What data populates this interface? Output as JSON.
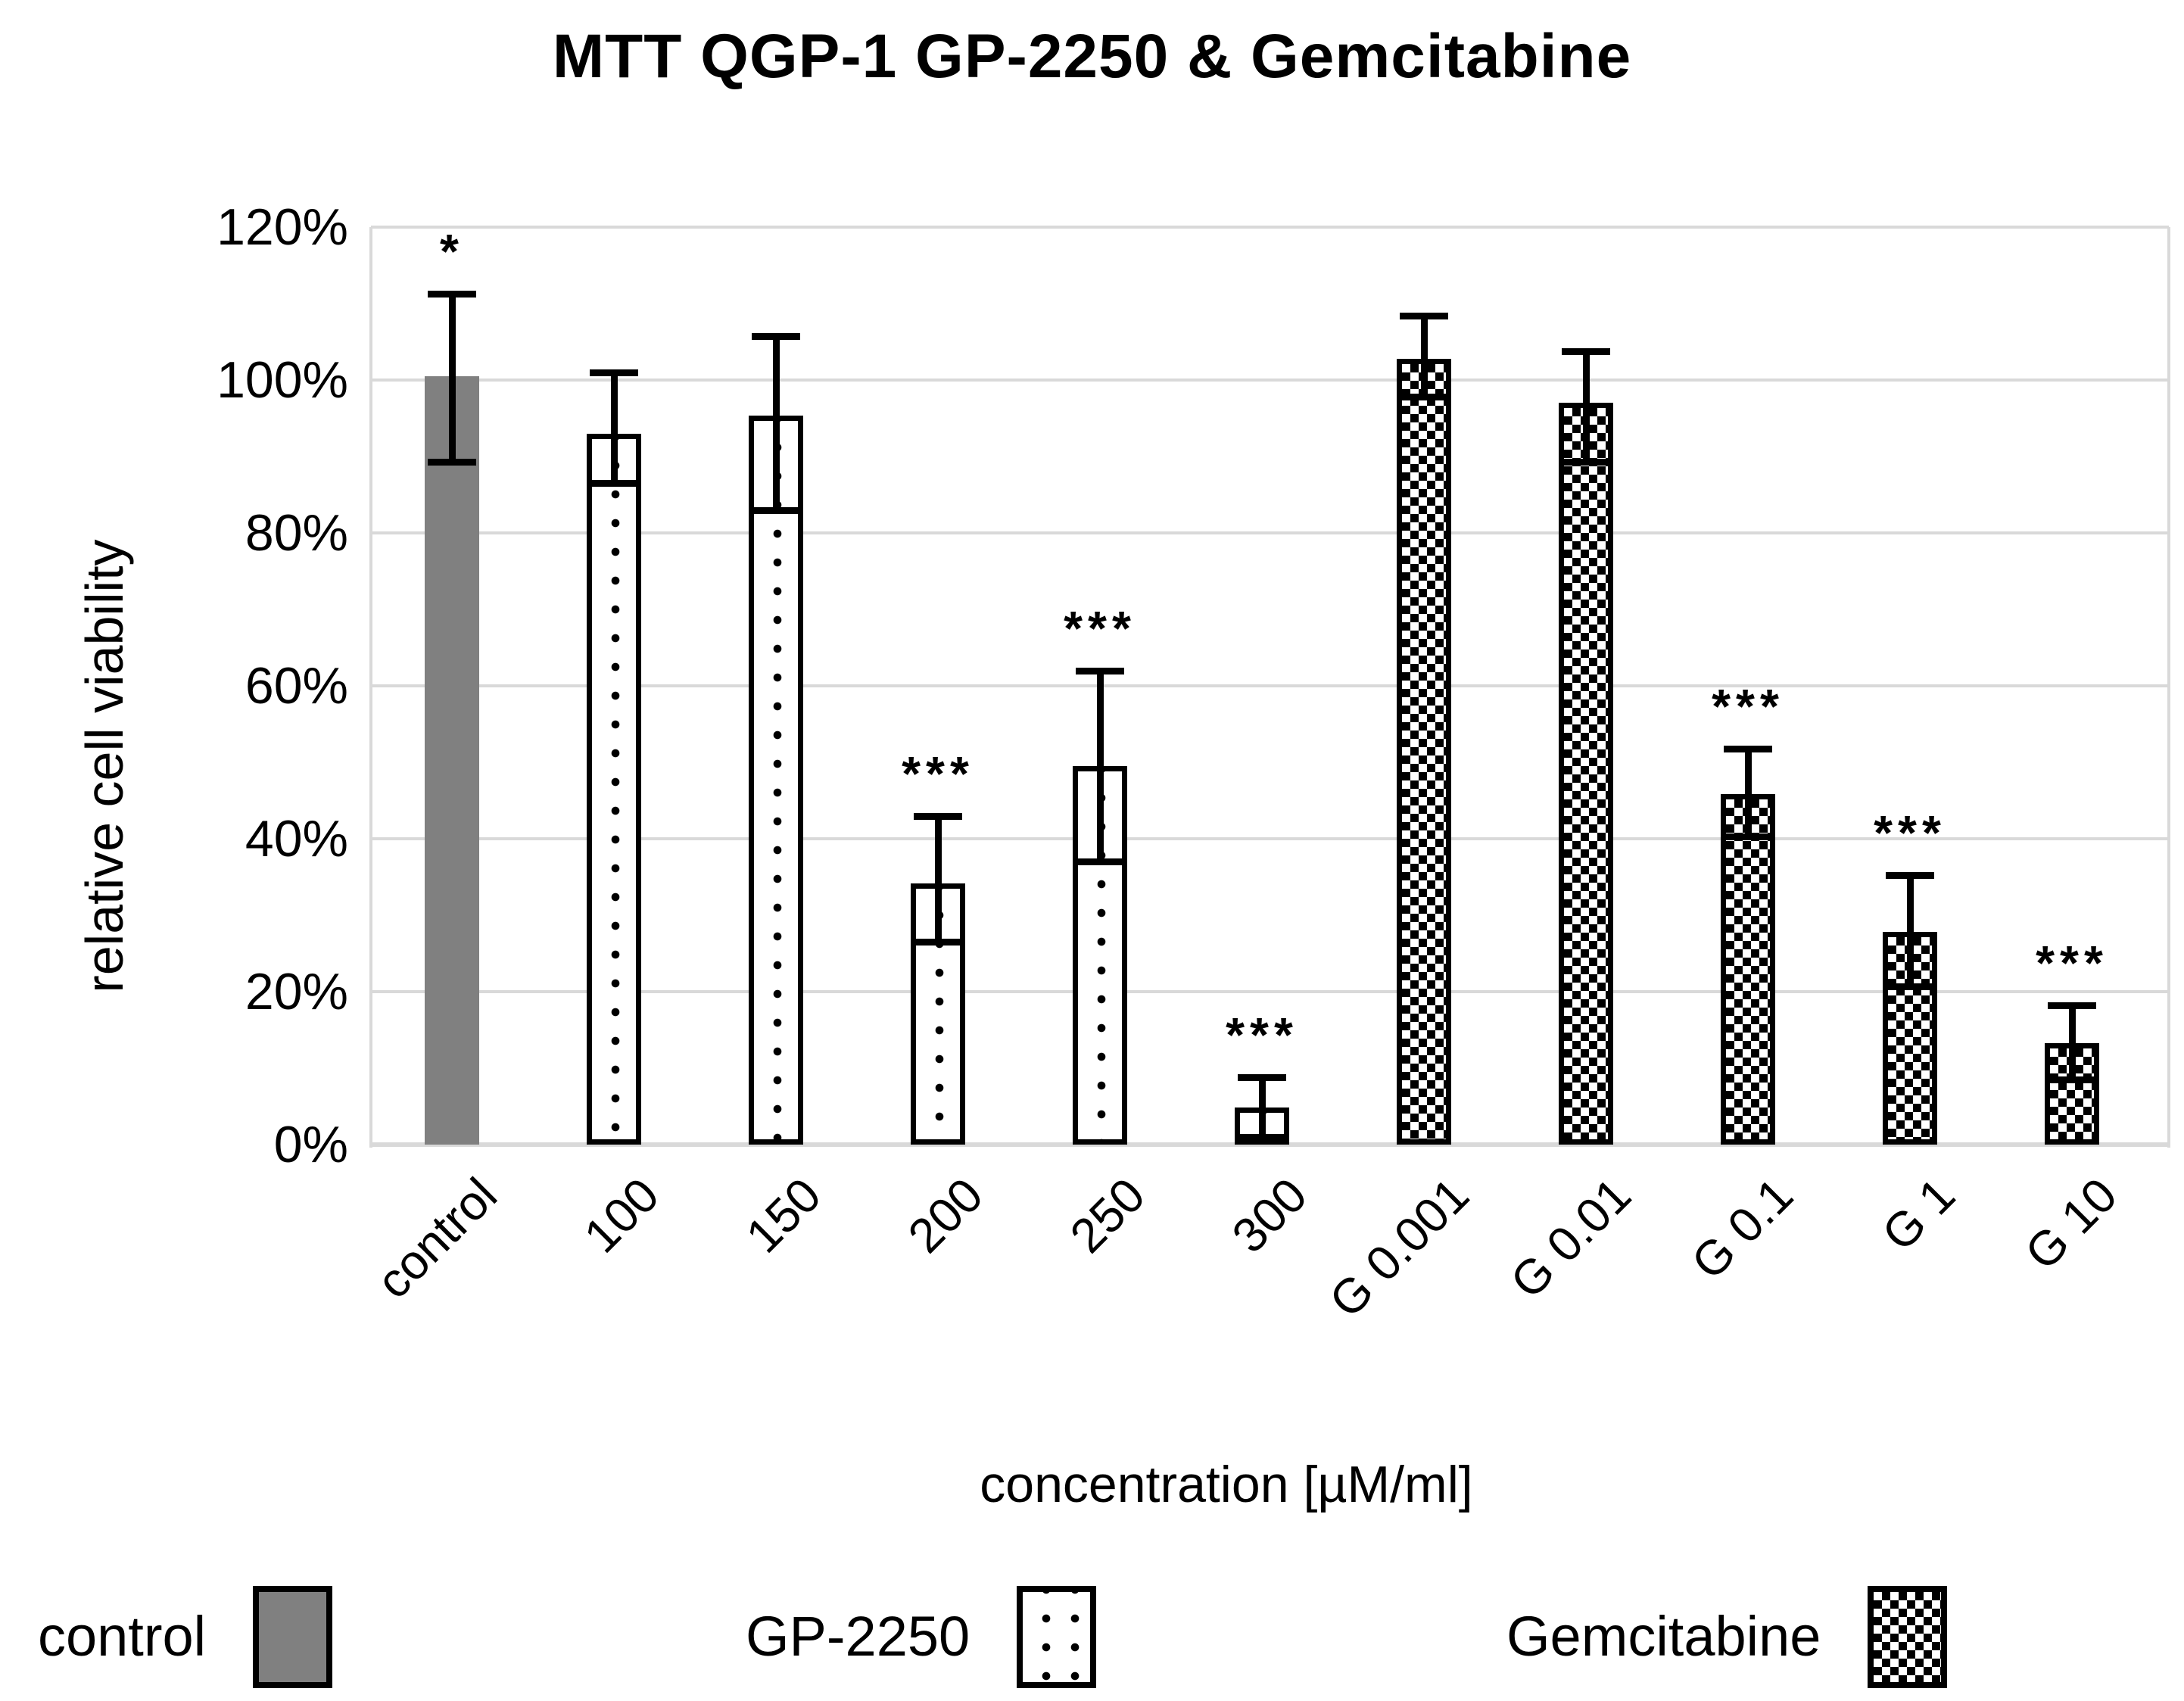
{
  "chart_data": {
    "type": "bar",
    "title": "MTT QGP-1 GP-2250 & Gemcitabine",
    "ylabel": "relative cell viability",
    "xlabel": "concentration [µM/ml]",
    "ylim": [
      0,
      120
    ],
    "y_tick_labels": [
      "0%",
      "20%",
      "40%",
      "60%",
      "80%",
      "100%",
      "120%"
    ],
    "grid": "horizontal",
    "legend_position": "bottom",
    "categories": [
      "control",
      "100",
      "150",
      "200",
      "250",
      "300",
      "G 0.001",
      "G 0.01",
      "G 0.1",
      "G 1",
      "G 10"
    ],
    "bars": [
      {
        "label": "control",
        "series": "control",
        "value": 100.5,
        "err_low": 89.3,
        "err_high": 111.3,
        "significance": "*"
      },
      {
        "label": "100",
        "series": "GP-2250",
        "value": 93.0,
        "err_low": 86.5,
        "err_high": 101.0,
        "significance": ""
      },
      {
        "label": "150",
        "series": "GP-2250",
        "value": 95.3,
        "err_low": 83.0,
        "err_high": 105.7,
        "significance": ""
      },
      {
        "label": "200",
        "series": "GP-2250",
        "value": 34.2,
        "err_low": 26.5,
        "err_high": 43.0,
        "significance": "***"
      },
      {
        "label": "250",
        "series": "GP-2250",
        "value": 49.5,
        "err_low": 37.0,
        "err_high": 62.0,
        "significance": "***"
      },
      {
        "label": "300",
        "series": "GP-2250",
        "value": 4.9,
        "err_low": 1.0,
        "err_high": 8.8,
        "significance": "***"
      },
      {
        "label": "G 0.001",
        "series": "Gemcitabine",
        "value": 102.8,
        "err_low": 97.8,
        "err_high": 108.4,
        "significance": ""
      },
      {
        "label": "G 0.01",
        "series": "Gemcitabine",
        "value": 97.0,
        "err_low": 89.3,
        "err_high": 103.8,
        "significance": ""
      },
      {
        "label": "G 0.1",
        "series": "Gemcitabine",
        "value": 45.8,
        "err_low": 40.3,
        "err_high": 51.8,
        "significance": "***"
      },
      {
        "label": "G 1",
        "series": "Gemcitabine",
        "value": 27.8,
        "err_low": 20.7,
        "err_high": 35.2,
        "significance": "***"
      },
      {
        "label": "G 10",
        "series": "Gemcitabine",
        "value": 13.3,
        "err_low": 8.5,
        "err_high": 18.2,
        "significance": "***"
      }
    ],
    "legend": [
      {
        "label": "control",
        "pattern": "solid-gray"
      },
      {
        "label": "GP-2250",
        "pattern": "dots"
      },
      {
        "label": "Gemcitabine",
        "pattern": "checker"
      }
    ],
    "colors": {
      "control_fill": "#808080",
      "bar_outline": "#000000",
      "gridline": "#d9d9d9",
      "text": "#000000",
      "background": "#ffffff"
    }
  }
}
